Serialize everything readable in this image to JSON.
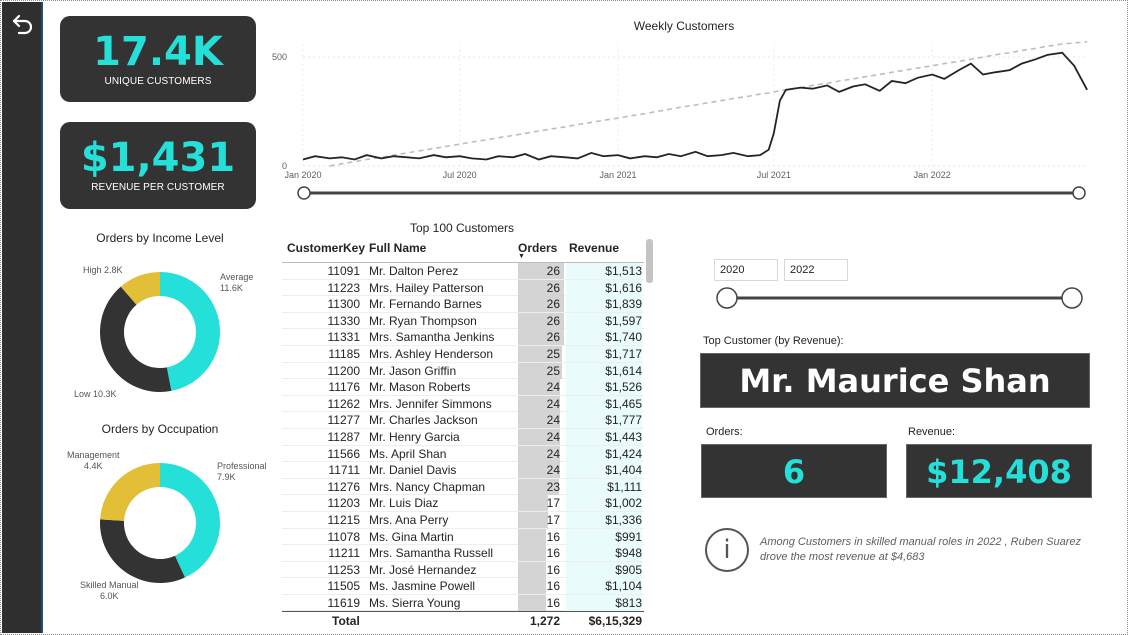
{
  "kpis": {
    "unique_customers": {
      "value": "17.4K",
      "label": "UNIQUE CUSTOMERS"
    },
    "revenue_per_customer": {
      "value": "$1,431",
      "label": "REVENUE PER CUSTOMER"
    }
  },
  "weekly_chart": {
    "title": "Weekly Customers",
    "y_ticks": [
      "500",
      "0"
    ],
    "x_ticks": [
      "Jan 2020",
      "Jul 2020",
      "Jan 2021",
      "Jul 2021",
      "Jan 2022"
    ]
  },
  "chart_data": [
    {
      "type": "line",
      "title": "Weekly Customers",
      "xlabel": "",
      "ylabel": "",
      "ylim": [
        0,
        560
      ],
      "x": [
        "2020-01-01",
        "2020-01-15",
        "2020-02-01",
        "2020-02-15",
        "2020-03-01",
        "2020-03-15",
        "2020-04-01",
        "2020-04-15",
        "2020-05-01",
        "2020-05-15",
        "2020-06-01",
        "2020-06-15",
        "2020-07-01",
        "2020-07-15",
        "2020-08-01",
        "2020-08-15",
        "2020-09-01",
        "2020-09-15",
        "2020-10-01",
        "2020-10-15",
        "2020-11-01",
        "2020-11-15",
        "2020-12-01",
        "2020-12-15",
        "2021-01-01",
        "2021-01-15",
        "2021-02-01",
        "2021-02-15",
        "2021-03-01",
        "2021-03-15",
        "2021-04-01",
        "2021-04-15",
        "2021-05-01",
        "2021-05-15",
        "2021-06-01",
        "2021-06-15",
        "2021-06-25",
        "2021-07-01",
        "2021-07-08",
        "2021-07-15",
        "2021-08-01",
        "2021-08-15",
        "2021-09-01",
        "2021-09-15",
        "2021-10-01",
        "2021-10-15",
        "2021-11-01",
        "2021-11-15",
        "2021-12-01",
        "2021-12-15",
        "2022-01-01",
        "2022-01-15",
        "2022-02-01",
        "2022-02-15",
        "2022-03-01",
        "2022-03-15",
        "2022-04-01",
        "2022-04-15",
        "2022-05-01",
        "2022-05-15",
        "2022-06-01",
        "2022-06-15",
        "2022-06-30"
      ],
      "series": [
        {
          "values": [
            30,
            45,
            35,
            40,
            30,
            50,
            35,
            45,
            40,
            35,
            50,
            40,
            45,
            35,
            30,
            45,
            40,
            55,
            30,
            45,
            40,
            35,
            60,
            45,
            50,
            35,
            45,
            40,
            55,
            45,
            65,
            45,
            50,
            60,
            45,
            50,
            75,
            150,
            300,
            350,
            360,
            355,
            370,
            340,
            365,
            375,
            345,
            390,
            380,
            405,
            420,
            400,
            440,
            470,
            420,
            430,
            440,
            470,
            490,
            510,
            520,
            460,
            350
          ]
        },
        {
          "values": [
            -20,
            -10,
            0,
            10,
            20,
            30,
            40,
            50,
            60,
            70,
            80,
            90,
            100,
            110,
            120,
            130,
            140,
            150,
            160,
            170,
            180,
            190,
            200,
            210,
            220,
            230,
            240,
            250,
            260,
            270,
            280,
            290,
            300,
            310,
            320,
            330,
            335,
            340,
            345,
            350,
            360,
            370,
            380,
            390,
            400,
            410,
            420,
            430,
            440,
            450,
            460,
            470,
            480,
            490,
            500,
            510,
            520,
            530,
            540,
            550,
            560,
            565,
            570
          ]
        }
      ]
    },
    {
      "type": "pie",
      "title": "Orders by Income Level",
      "categories": [
        "Average",
        "Low",
        "High"
      ],
      "values": [
        11.6,
        10.3,
        2.8
      ],
      "colors": [
        "#25e0d8",
        "#333333",
        "#e2bf36"
      ]
    },
    {
      "type": "pie",
      "title": "Orders by Occupation",
      "categories": [
        "Professional",
        "Skilled Manual",
        "Management"
      ],
      "values": [
        7.9,
        6.0,
        4.4
      ],
      "colors": [
        "#25e0d8",
        "#333333",
        "#e2bf36"
      ]
    }
  ],
  "income_donut": {
    "title": "Orders by Income Level",
    "labels": [
      {
        "name": "Average",
        "value": "11.6K"
      },
      {
        "name": "Low",
        "value": "10.3K"
      },
      {
        "name": "High",
        "value": "2.8K"
      }
    ]
  },
  "occupation_donut": {
    "title": "Orders by Occupation",
    "labels": [
      {
        "name": "Professional",
        "value": "7.9K"
      },
      {
        "name": "Skilled Manual",
        "value": "6.0K"
      },
      {
        "name": "Management",
        "value": "4.4K"
      }
    ]
  },
  "table": {
    "title": "Top 100 Customers",
    "headers": {
      "key": "CustomerKey",
      "name": "Full Name",
      "orders": "Orders",
      "revenue": "Revenue"
    },
    "rows": [
      {
        "key": "11091",
        "name": "Mr. Dalton Perez",
        "orders": 26,
        "revenue": "$1,513"
      },
      {
        "key": "11223",
        "name": "Mrs. Hailey Patterson",
        "orders": 26,
        "revenue": "$1,616"
      },
      {
        "key": "11300",
        "name": "Mr. Fernando Barnes",
        "orders": 26,
        "revenue": "$1,839"
      },
      {
        "key": "11330",
        "name": "Mr. Ryan Thompson",
        "orders": 26,
        "revenue": "$1,597"
      },
      {
        "key": "11331",
        "name": "Mrs. Samantha Jenkins",
        "orders": 26,
        "revenue": "$1,740"
      },
      {
        "key": "11185",
        "name": "Mrs. Ashley Henderson",
        "orders": 25,
        "revenue": "$1,717"
      },
      {
        "key": "11200",
        "name": "Mr. Jason Griffin",
        "orders": 25,
        "revenue": "$1,614"
      },
      {
        "key": "11176",
        "name": "Mr. Mason Roberts",
        "orders": 24,
        "revenue": "$1,526"
      },
      {
        "key": "11262",
        "name": "Mrs. Jennifer Simmons",
        "orders": 24,
        "revenue": "$1,465"
      },
      {
        "key": "11277",
        "name": "Mr. Charles Jackson",
        "orders": 24,
        "revenue": "$1,777"
      },
      {
        "key": "11287",
        "name": "Mr. Henry Garcia",
        "orders": 24,
        "revenue": "$1,443"
      },
      {
        "key": "11566",
        "name": "Ms. April Shan",
        "orders": 24,
        "revenue": "$1,424"
      },
      {
        "key": "11711",
        "name": "Mr. Daniel Davis",
        "orders": 24,
        "revenue": "$1,404"
      },
      {
        "key": "11276",
        "name": "Mrs. Nancy Chapman",
        "orders": 23,
        "revenue": "$1,111"
      },
      {
        "key": "11203",
        "name": "Mr. Luis Diaz",
        "orders": 17,
        "revenue": "$1,002"
      },
      {
        "key": "11215",
        "name": "Mrs. Ana Perry",
        "orders": 17,
        "revenue": "$1,336"
      },
      {
        "key": "11078",
        "name": "Ms. Gina Martin",
        "orders": 16,
        "revenue": "$991"
      },
      {
        "key": "11211",
        "name": "Mrs. Samantha Russell",
        "orders": 16,
        "revenue": "$948"
      },
      {
        "key": "11253",
        "name": "Mr. José Hernandez",
        "orders": 16,
        "revenue": "$905"
      },
      {
        "key": "11505",
        "name": "Ms. Jasmine Powell",
        "orders": 16,
        "revenue": "$1,104"
      },
      {
        "key": "11619",
        "name": "Ms. Sierra Young",
        "orders": 16,
        "revenue": "$813"
      }
    ],
    "total": {
      "label": "Total",
      "orders": "1,272",
      "revenue": "$6,15,329"
    }
  },
  "date_slicer": {
    "start": "2020",
    "end": "2022"
  },
  "top_customer": {
    "label": "Top Customer (by Revenue):",
    "name": "Mr. Maurice Shan",
    "orders_label": "Orders:",
    "orders_value": "6",
    "revenue_label": "Revenue:",
    "revenue_value": "$12,408"
  },
  "insight": {
    "text": "Among Customers in skilled manual roles in 2022 , Ruben Suarez drove the most revenue at $4,683",
    "icon": "info-icon"
  },
  "colors": {
    "accent": "#25e0d8",
    "dark": "#333333",
    "yellow": "#e2bf36"
  }
}
